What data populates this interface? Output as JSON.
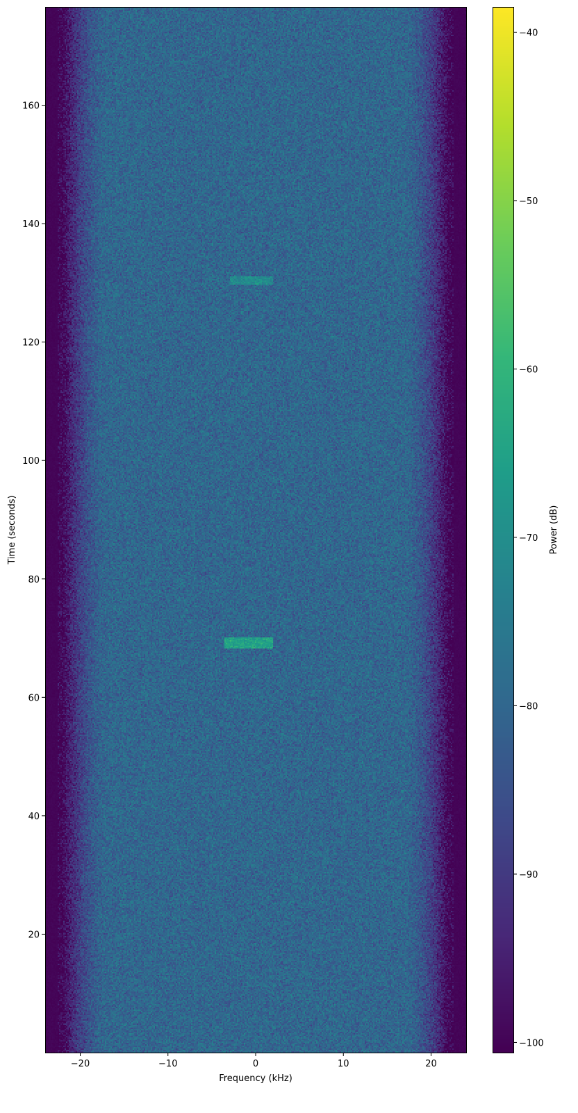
{
  "chart_data": {
    "type": "heatmap",
    "xlabel": "Frequency (kHz)",
    "ylabel": "Time (seconds)",
    "colorbar_label": "Power (dB)",
    "colormap": "viridis",
    "xlim": [
      -24,
      24
    ],
    "ylim": [
      0,
      176.6
    ],
    "clim": [
      -100.6,
      -38.5
    ],
    "xticks": [
      -20,
      -10,
      0,
      10,
      20
    ],
    "yticks": [
      20,
      40,
      60,
      80,
      100,
      120,
      140,
      160
    ],
    "cticks": [
      -40,
      -50,
      -60,
      -70,
      -80,
      -90,
      -100
    ],
    "grid": false,
    "noise_floor_db": -80,
    "passband_edge_khz": 21.5,
    "stopband_db": -100,
    "features": [
      {
        "time_s": [
          68.3,
          70.1
        ],
        "freq_khz": [
          -3.5,
          2.0
        ],
        "power_db": -65
      },
      {
        "time_s": [
          129.6,
          131.2
        ],
        "freq_khz": [
          -3.0,
          2.0
        ],
        "power_db": -71
      }
    ]
  }
}
